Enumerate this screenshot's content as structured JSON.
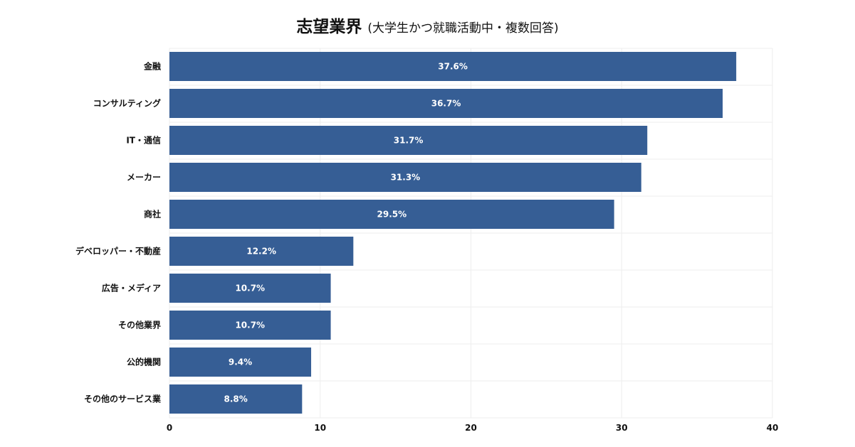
{
  "chart_data": {
    "type": "bar",
    "orientation": "horizontal",
    "title": "志望業界",
    "subtitle": "(大学生かつ就職活動中・複数回答)",
    "categories": [
      "金融",
      "コンサルティング",
      "IT・通信",
      "メーカー",
      "商社",
      "デベロッパー・不動産",
      "広告・メディア",
      "その他業界",
      "公的機関",
      "その他のサービス業"
    ],
    "values": [
      37.6,
      36.7,
      31.7,
      31.3,
      29.5,
      12.2,
      10.7,
      10.7,
      9.4,
      8.8
    ],
    "data_labels": [
      "37.6%",
      "36.7%",
      "31.7%",
      "31.3%",
      "29.5%",
      "12.2%",
      "10.7%",
      "10.7%",
      "9.4%",
      "8.8%"
    ],
    "xlim": [
      0,
      40
    ],
    "x_ticks": [
      0,
      10,
      20,
      30,
      40
    ],
    "grid": true,
    "legend": "none",
    "bar_color": "#365e95",
    "grid_color": "#eeeeee"
  }
}
